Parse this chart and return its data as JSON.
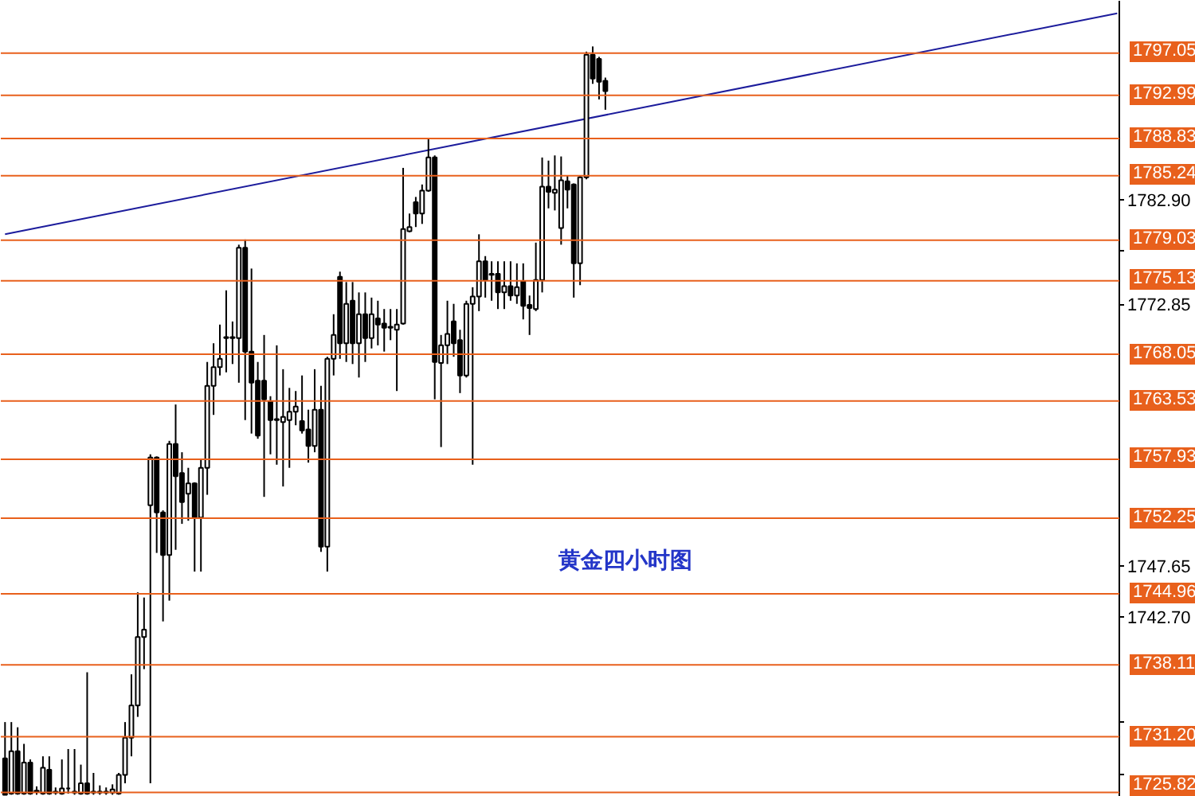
{
  "chart_data": {
    "type": "candlestick",
    "categories": [
      null,
      null,
      null,
      null,
      null,
      null,
      null,
      null,
      null,
      null,
      null,
      null,
      null,
      null,
      null,
      null,
      null,
      null,
      null,
      null,
      null,
      null,
      null,
      null,
      null,
      null,
      null,
      null,
      null,
      null,
      null,
      null,
      null,
      null,
      null,
      null,
      null,
      null,
      null,
      null,
      null,
      null,
      null,
      null,
      null,
      null,
      null,
      null,
      null,
      null,
      null,
      null,
      null,
      null,
      null,
      null,
      null,
      null,
      null,
      null,
      null,
      null,
      null,
      null,
      null,
      null,
      null,
      null,
      null,
      null,
      null,
      null,
      null,
      null,
      null,
      null,
      null,
      null,
      null,
      null,
      null,
      null,
      null,
      null,
      null,
      null,
      null,
      null,
      null,
      null,
      null,
      null,
      null,
      null,
      null,
      null,
      null,
      null,
      null,
      null,
      null,
      null,
      null,
      null,
      null,
      null,
      null,
      null,
      null,
      null,
      null,
      null,
      null,
      null,
      null,
      null,
      null,
      null,
      null,
      null,
      null,
      null,
      null,
      null,
      null,
      null,
      null,
      null,
      null,
      null,
      null,
      null,
      null,
      null,
      null,
      null,
      null,
      null,
      null,
      null,
      null,
      null,
      null,
      null,
      null,
      null,
      null,
      null,
      null,
      null,
      null,
      null,
      null,
      null,
      null,
      null,
      null,
      null,
      null,
      null,
      null,
      null,
      null,
      null,
      null,
      null,
      null,
      null,
      null,
      null,
      null,
      null,
      null,
      null,
      null,
      null,
      null
    ],
    "ohlc": [
      [
        1729.1,
        1732.6,
        1725.6,
        1725.6
      ],
      [
        1725.7,
        1732.6,
        1725.6,
        1729.8
      ],
      [
        1729.8,
        1732.1,
        1725.6,
        1725.7
      ],
      [
        1725.7,
        1730.5,
        1725.6,
        1728.7
      ],
      [
        1728.7,
        1729.0,
        1725.6,
        1725.7
      ],
      [
        1725.9,
        1726.4,
        1725.6,
        1726.0
      ],
      [
        1725.7,
        1729.3,
        1725.6,
        1728.2
      ],
      [
        1728.0,
        1729.3,
        1725.6,
        1725.7
      ],
      [
        1725.8,
        1726.3,
        1725.6,
        1725.9
      ],
      [
        1725.7,
        1729.0,
        1725.6,
        1726.2
      ],
      [
        1726.2,
        1730.0,
        1725.7,
        1726.2
      ],
      [
        1725.8,
        1730.0,
        1725.6,
        1725.9
      ],
      [
        1725.7,
        1728.5,
        1725.6,
        1726.7
      ],
      [
        1726.7,
        1737.4,
        1725.6,
        1725.7
      ],
      [
        1725.8,
        1727.7,
        1725.6,
        1725.9
      ],
      [
        1725.8,
        1726.5,
        1725.6,
        1725.9
      ],
      [
        1725.9,
        1726.3,
        1725.6,
        1725.8
      ],
      [
        1725.8,
        1726.6,
        1725.6,
        1726.1
      ],
      [
        1725.7,
        1727.7,
        1725.6,
        1727.5
      ],
      [
        1727.5,
        1732.6,
        1726.7,
        1731.1
      ],
      [
        1731.1,
        1737.2,
        1729.3,
        1734.2
      ],
      [
        1734.2,
        1745.1,
        1733.1,
        1740.8
      ],
      [
        1740.8,
        1744.6,
        1737.7,
        1741.5
      ],
      [
        1753.5,
        1758.4,
        1726.7,
        1758.1
      ],
      [
        1758.1,
        1758.2,
        1748.9,
        1752.8
      ],
      [
        1752.8,
        1753.0,
        1742.3,
        1748.7
      ],
      [
        1748.7,
        1759.7,
        1744.3,
        1759.4
      ],
      [
        1759.4,
        1763.2,
        1749.2,
        1756.3
      ],
      [
        1756.6,
        1758.6,
        1751.7,
        1753.8
      ],
      [
        1754.6,
        1757.1,
        1752.0,
        1755.6
      ],
      [
        1755.6,
        1755.7,
        1747.1,
        1752.3
      ],
      [
        1752.3,
        1757.9,
        1747.1,
        1757.1
      ],
      [
        1757.1,
        1767.3,
        1754.5,
        1765.0
      ],
      [
        1765.0,
        1769.1,
        1762.2,
        1766.8
      ],
      [
        1766.8,
        1770.9,
        1766.0,
        1767.6
      ],
      [
        1769.6,
        1774.2,
        1766.3,
        1769.7
      ],
      [
        1769.7,
        1771.2,
        1767.1,
        1769.6
      ],
      [
        1769.6,
        1778.6,
        1765.3,
        1778.3
      ],
      [
        1778.3,
        1779.1,
        1761.7,
        1768.3
      ],
      [
        1768.3,
        1776.3,
        1760.4,
        1765.3
      ],
      [
        1765.5,
        1767.3,
        1759.9,
        1760.2
      ],
      [
        1765.5,
        1769.9,
        1754.3,
        1763.7
      ],
      [
        1763.5,
        1764.0,
        1758.4,
        1761.7
      ],
      [
        1761.7,
        1768.9,
        1757.4,
        1761.8
      ],
      [
        1761.5,
        1766.6,
        1755.3,
        1762.0
      ],
      [
        1761.7,
        1764.8,
        1757.1,
        1762.5
      ],
      [
        1762.5,
        1764.5,
        1761.2,
        1763.0
      ],
      [
        1761.6,
        1766.0,
        1760.4,
        1760.7
      ],
      [
        1760.8,
        1762.7,
        1757.6,
        1759.2
      ],
      [
        1759.2,
        1766.6,
        1758.6,
        1762.7
      ],
      [
        1762.7,
        1765.0,
        1749.0,
        1749.5
      ],
      [
        1749.5,
        1767.8,
        1747.1,
        1767.6
      ],
      [
        1767.6,
        1771.9,
        1766.0,
        1769.9
      ],
      [
        1775.5,
        1776.0,
        1767.6,
        1769.1
      ],
      [
        1769.1,
        1775.0,
        1767.3,
        1772.9
      ],
      [
        1773.2,
        1775.0,
        1767.1,
        1769.1
      ],
      [
        1769.1,
        1774.0,
        1765.8,
        1771.9
      ],
      [
        1771.9,
        1774.0,
        1767.3,
        1769.6
      ],
      [
        1769.6,
        1773.5,
        1768.6,
        1771.9
      ],
      [
        1771.5,
        1773.2,
        1768.9,
        1770.9
      ],
      [
        1771.0,
        1772.4,
        1768.3,
        1770.6
      ],
      [
        1770.6,
        1772.4,
        1769.4,
        1770.7
      ],
      [
        1770.4,
        1772.4,
        1764.5,
        1770.9
      ],
      [
        1771.0,
        1786.0,
        1770.9,
        1780.1
      ],
      [
        1779.9,
        1781.6,
        1779.8,
        1780.3
      ],
      [
        1782.7,
        1783.2,
        1780.3,
        1781.6
      ],
      [
        1781.6,
        1784.4,
        1780.6,
        1783.8
      ],
      [
        1783.8,
        1788.8,
        1783.7,
        1787.0
      ],
      [
        1787.0,
        1787.2,
        1763.7,
        1767.3
      ],
      [
        1767.2,
        1769.9,
        1759.1,
        1768.9
      ],
      [
        1768.9,
        1773.2,
        1767.1,
        1770.0
      ],
      [
        1771.2,
        1772.9,
        1767.8,
        1769.1
      ],
      [
        1769.4,
        1770.4,
        1764.3,
        1766.0
      ],
      [
        1766.0,
        1773.2,
        1765.8,
        1772.9
      ],
      [
        1772.9,
        1774.5,
        1757.4,
        1773.6
      ],
      [
        1773.6,
        1779.6,
        1772.2,
        1777.0
      ],
      [
        1777.0,
        1777.5,
        1773.5,
        1775.2
      ],
      [
        1775.7,
        1777.0,
        1773.2,
        1775.8
      ],
      [
        1775.8,
        1777.0,
        1772.4,
        1774.0
      ],
      [
        1774.0,
        1777.0,
        1772.4,
        1774.6
      ],
      [
        1774.6,
        1777.0,
        1773.2,
        1773.7
      ],
      [
        1773.7,
        1776.8,
        1772.9,
        1774.5
      ],
      [
        1775.1,
        1776.8,
        1771.4,
        1772.7
      ],
      [
        1772.8,
        1773.7,
        1769.9,
        1772.5
      ],
      [
        1772.4,
        1778.8,
        1772.2,
        1775.2
      ],
      [
        1775.2,
        1787.0,
        1774.0,
        1784.2
      ],
      [
        1784.2,
        1786.7,
        1782.1,
        1783.7
      ],
      [
        1783.6,
        1787.2,
        1781.9,
        1783.9
      ],
      [
        1780.2,
        1787.1,
        1778.6,
        1784.8
      ],
      [
        1784.7,
        1785.3,
        1782.1,
        1783.9
      ],
      [
        1784.4,
        1784.5,
        1773.5,
        1776.8
      ],
      [
        1776.8,
        1785.3,
        1774.7,
        1785.1
      ],
      [
        1785.1,
        1797.2,
        1784.9,
        1796.9
      ],
      [
        1796.9,
        1797.7,
        1794.1,
        1794.6
      ],
      [
        1796.5,
        1796.7,
        1792.6,
        1794.3
      ],
      [
        1794.4,
        1794.7,
        1791.6,
        1793.4
      ],
      null,
      null,
      null,
      null,
      null,
      null,
      null,
      null,
      null,
      null,
      null,
      null,
      null,
      null,
      null,
      null,
      null,
      null,
      null,
      null,
      null,
      null,
      null,
      null,
      null,
      null,
      null,
      null,
      null,
      null,
      null,
      null,
      null,
      null,
      null,
      null,
      null,
      null,
      null,
      null,
      null,
      null,
      null,
      null,
      null,
      null,
      null,
      null,
      null,
      null,
      null,
      null,
      null,
      null,
      null,
      null,
      null,
      null,
      null,
      null,
      null,
      null,
      null,
      null,
      null,
      null,
      null,
      null,
      null,
      null,
      null,
      null,
      null,
      null,
      null,
      null,
      null,
      null,
      null,
      null,
      null
    ],
    "series": [
      {
        "type": "line",
        "color": "#1c1c9c",
        "values": [
          1779.6,
          null,
          null,
          null,
          null,
          null,
          null,
          null,
          null,
          null,
          null,
          null,
          null,
          null,
          null,
          null,
          null,
          null,
          null,
          null,
          null,
          null,
          null,
          null,
          null,
          null,
          null,
          null,
          null,
          null,
          null,
          null,
          null,
          null,
          null,
          null,
          null,
          null,
          null,
          null,
          null,
          null,
          null,
          null,
          null,
          null,
          null,
          null,
          null,
          null,
          null,
          null,
          null,
          null,
          null,
          null,
          null,
          null,
          null,
          null,
          null,
          null,
          null,
          null,
          null,
          null,
          null,
          null,
          null,
          null,
          null,
          null,
          null,
          null,
          null,
          null,
          null,
          null,
          null,
          null,
          null,
          null,
          null,
          null,
          null,
          null,
          null,
          null,
          null,
          null,
          null,
          null,
          null,
          null,
          null,
          null,
          null,
          null,
          null,
          null,
          null,
          null,
          null,
          null,
          null,
          null,
          null,
          null,
          null,
          null,
          null,
          null,
          null,
          null,
          null,
          null,
          null,
          null,
          null,
          null,
          null,
          null,
          null,
          null,
          null,
          null,
          null,
          null,
          null,
          null,
          null,
          null,
          null,
          null,
          null,
          null,
          null,
          null,
          null,
          null,
          null,
          null,
          null,
          null,
          null,
          null,
          null,
          null,
          null,
          null,
          null,
          null,
          null,
          null,
          null,
          null,
          null,
          null,
          null,
          null,
          null,
          null,
          null,
          null,
          null,
          null,
          null,
          null,
          null,
          null,
          null,
          null,
          null,
          null,
          null,
          null,
          1800.9
        ]
      }
    ],
    "ylim": [
      1725.4,
      1802.1
    ],
    "yticks": [
      {
        "value": 1727.55,
        "label": null
      },
      {
        "value": 1732.65,
        "label": null
      },
      {
        "value": 1742.7,
        "label": "1742.70"
      },
      {
        "value": 1747.65,
        "label": "1747.65"
      },
      {
        "value": 1772.85,
        "label": "1772.85"
      },
      {
        "value": 1777.95,
        "label": null
      },
      {
        "value": 1782.9,
        "label": "1782.90"
      }
    ],
    "ref_lines": [
      {
        "axis": "y",
        "value": 1797.05,
        "label": "1797.05",
        "color": "#e8601c"
      },
      {
        "axis": "y",
        "value": 1792.99,
        "label": "1792.99",
        "color": "#e8601c"
      },
      {
        "axis": "y",
        "value": 1788.83,
        "label": "1788.83",
        "color": "#e8601c"
      },
      {
        "axis": "y",
        "value": 1785.24,
        "label": "1785.24",
        "color": "#e8601c"
      },
      {
        "axis": "y",
        "value": 1779.03,
        "label": "1779.03",
        "color": "#e8601c"
      },
      {
        "axis": "y",
        "value": 1775.13,
        "label": "1775.13",
        "color": "#e8601c"
      },
      {
        "axis": "y",
        "value": 1768.05,
        "label": "1768.05",
        "color": "#e8601c"
      },
      {
        "axis": "y",
        "value": 1763.53,
        "label": "1763.53",
        "color": "#e8601c"
      },
      {
        "axis": "y",
        "value": 1757.93,
        "label": "1757.93",
        "color": "#e8601c"
      },
      {
        "axis": "y",
        "value": 1752.25,
        "label": "1752.25",
        "color": "#e8601c"
      },
      {
        "axis": "y",
        "value": 1744.96,
        "label": "1744.96",
        "color": "#e8601c"
      },
      {
        "axis": "y",
        "value": 1738.11,
        "label": "1738.11",
        "color": "#e8601c"
      },
      {
        "axis": "y",
        "value": 1731.2,
        "label": "1731.20",
        "color": "#e8601c"
      },
      {
        "axis": "y",
        "value": 1725.82,
        "label": "1725.82",
        "color": "#e8601c"
      }
    ],
    "annotations": [
      "黄金四小时图"
    ],
    "tick_labels": "y",
    "grid": false
  }
}
